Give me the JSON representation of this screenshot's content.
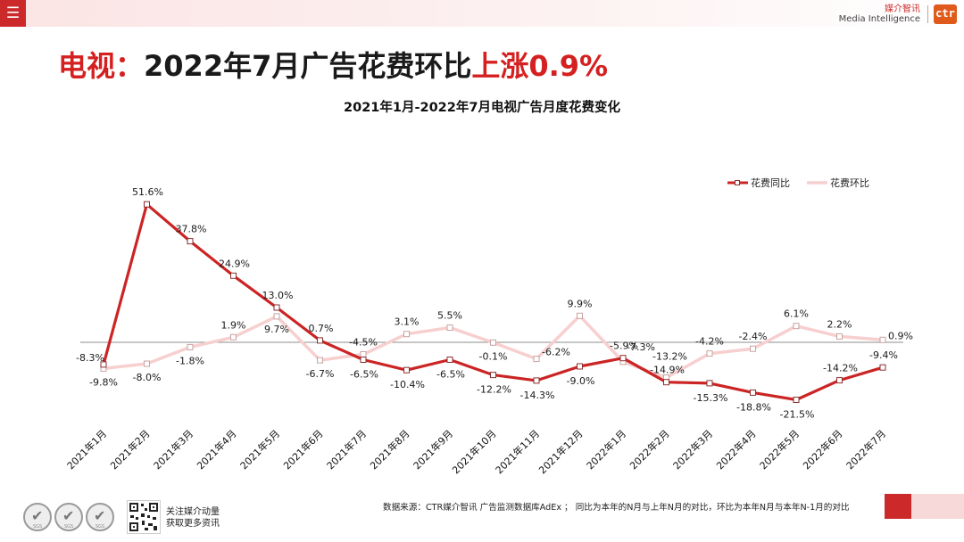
{
  "header": {
    "menu_icon": "hamburger-icon",
    "logo_cn": "媒介智讯",
    "logo_en": "Media Intelligence",
    "logo_mark": "ctr"
  },
  "page_title": {
    "part1": "电视：",
    "part2": "2022年7月广告花费环比",
    "part3": "上涨0.9%"
  },
  "colors": {
    "yoy": "#cc2424",
    "mom": "#f7cfcf",
    "accent": "#d42020"
  },
  "chart_data": {
    "type": "line",
    "title": "2021年1月-2022年7月电视广告月度花费变化",
    "categories": [
      "2021年1月",
      "2021年2月",
      "2021年3月",
      "2021年4月",
      "2021年5月",
      "2021年6月",
      "2021年7月",
      "2021年8月",
      "2021年9月",
      "2021年10月",
      "2021年11月",
      "2021年12月",
      "2022年1月",
      "2022年2月",
      "2022年3月",
      "2022年4月",
      "2022年5月",
      "2022年6月",
      "2022年7月"
    ],
    "series": [
      {
        "name": "花费同比",
        "values": [
          -8.3,
          51.6,
          37.8,
          24.9,
          13.0,
          0.7,
          -6.5,
          -10.4,
          -6.5,
          -12.2,
          -14.3,
          -9.0,
          -5.9,
          -14.9,
          -15.3,
          -18.8,
          -21.5,
          -14.2,
          -9.4
        ],
        "labels": [
          "-8.3%",
          "51.6%",
          "37.8%",
          "24.9%",
          "13.0%",
          "0.7%",
          "-6.5%",
          "-10.4%",
          "-6.5%",
          "-12.2%",
          "-14.3%",
          "-9.0%",
          "-5.9%",
          "-14.9%",
          "-15.3%",
          "-18.8%",
          "-21.5%",
          "-14.2%",
          "-9.4%"
        ]
      },
      {
        "name": "花费环比",
        "values": [
          -9.8,
          -8.0,
          -1.8,
          1.9,
          9.7,
          -6.7,
          -4.5,
          3.1,
          5.5,
          -0.1,
          -6.2,
          9.9,
          -7.3,
          -13.2,
          -4.2,
          -2.4,
          6.1,
          2.2,
          0.9
        ],
        "labels": [
          "-9.8%",
          "-8.0%",
          "-1.8%",
          "1.9%",
          "9.7%",
          "-6.7%",
          "-4.5%",
          "3.1%",
          "5.5%",
          "-0.1%",
          "-6.2%",
          "9.9%",
          "-7.3%",
          "-13.2%",
          "-4.2%",
          "-2.4%",
          "6.1%",
          "2.2%",
          "0.9%"
        ]
      }
    ],
    "legend_position": "top-right"
  },
  "footer": {
    "source": "数据来源：CTR媒介智讯 广告监测数据库AdEx ； 同比为本年的N月与上年N月的对比，环比为本年N月与本年N-1月的对比",
    "follow_line1": "关注媒介动量",
    "follow_line2": "获取更多资讯",
    "badge_label": "SGS"
  }
}
